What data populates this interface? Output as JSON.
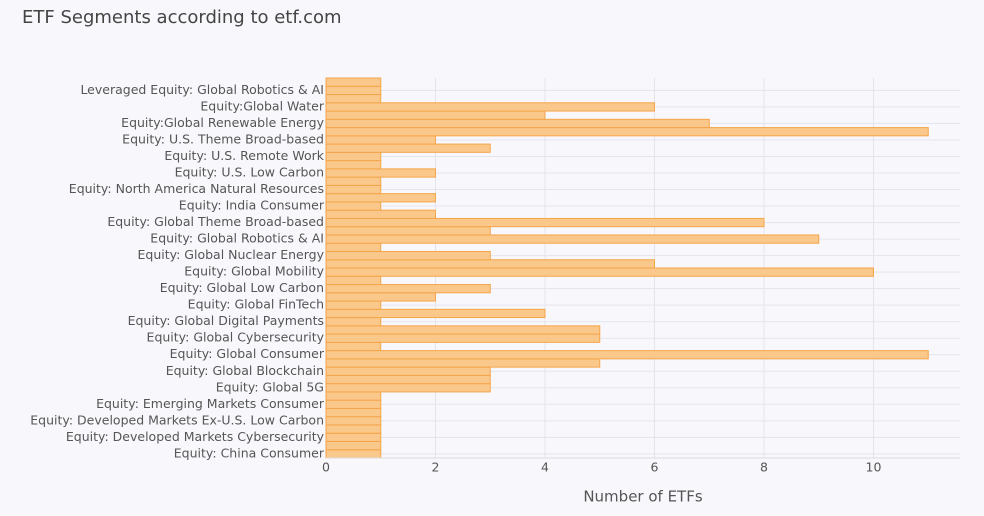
{
  "chart_data": {
    "type": "barh",
    "title": "ETF Segments according to etf.com",
    "x_label": "Number of ETFs",
    "categories": [
      "Equity: China Consumer",
      null,
      "Equity: Developed Markets Cybersecurity",
      null,
      "Equity: Developed Markets Ex-U.S. Low Carbon",
      null,
      "Equity: Emerging Markets Consumer",
      null,
      "Equity: Global 5G",
      null,
      "Equity: Global Blockchain",
      null,
      "Equity: Global Consumer",
      null,
      "Equity: Global Cybersecurity",
      null,
      "Equity: Global Digital Payments",
      null,
      "Equity: Global FinTech",
      null,
      "Equity: Global Low Carbon",
      null,
      "Equity: Global Mobility",
      null,
      "Equity: Global Nuclear Energy",
      null,
      "Equity: Global Robotics & AI",
      null,
      "Equity: Global Theme Broad-based",
      null,
      "Equity: India Consumer",
      null,
      "Equity: North America Natural Resources",
      null,
      "Equity: U.S. Low Carbon",
      null,
      "Equity: U.S. Remote Work",
      null,
      "Equity: U.S. Theme Broad-based",
      null,
      "Equity:Global Renewable Energy",
      null,
      "Equity:Global Water",
      null,
      "Leveraged Equity: Global Robotics & AI",
      null
    ],
    "values": [
      1,
      1,
      1,
      1,
      1,
      1,
      1,
      1,
      3,
      3,
      3,
      5,
      11,
      1,
      5,
      5,
      1,
      4,
      1,
      2,
      3,
      1,
      10,
      6,
      3,
      1,
      9,
      3,
      8,
      2,
      1,
      2,
      1,
      1,
      2,
      1,
      1,
      3,
      2,
      11,
      7,
      4,
      6,
      1,
      1,
      1
    ],
    "color": "#f9c88a",
    "edge_color": "#f5a54a",
    "xlim": [
      0,
      11.58
    ],
    "xticks": [
      0,
      2,
      4,
      6,
      8,
      10
    ],
    "grid": true
  }
}
